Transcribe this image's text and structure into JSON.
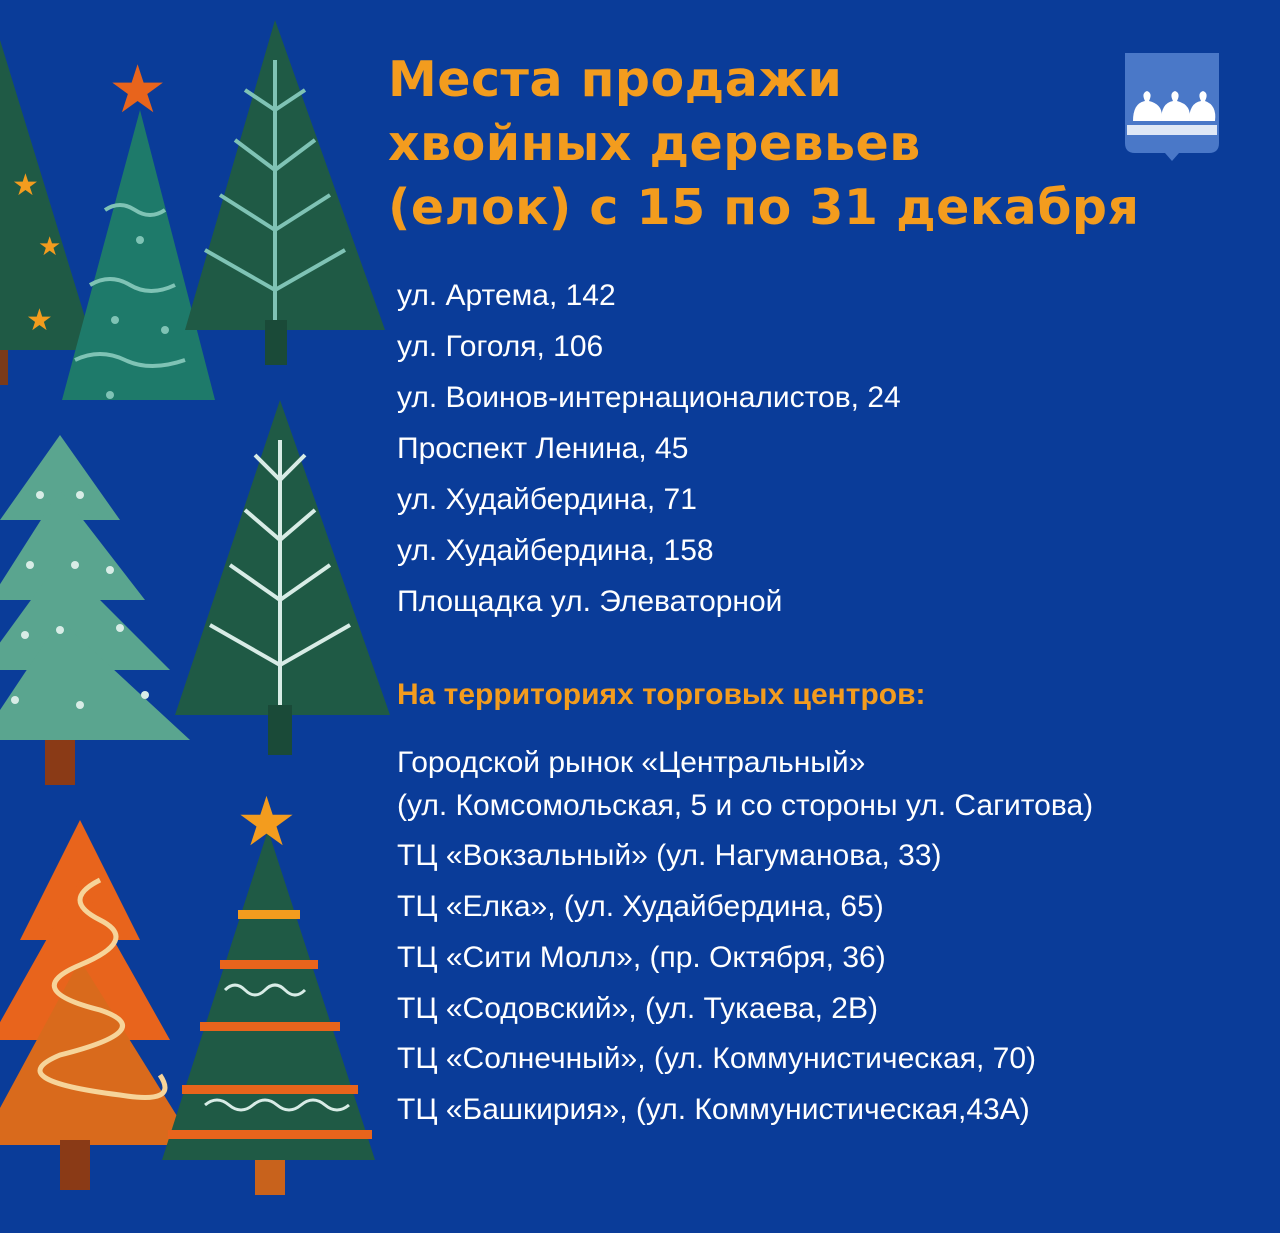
{
  "title_lines": [
    "Места продажи",
    "хвойных деревьев",
    "(елок) с 15 по 31 декабря"
  ],
  "crest_icon": "city-coat-of-arms-swans",
  "addresses": [
    "ул. Артема, 142",
    "ул. Гоголя, 106",
    "ул. Воинов-интернационалистов, 24",
    "Проспект Ленина, 45",
    "ул. Худайбердина, 71",
    "ул. Худайбердина, 158",
    "Площадка ул. Элеваторной"
  ],
  "malls_heading": "На территориях торговых центров:",
  "malls": [
    "Городской рынок «Центральный»",
    "(ул. Комсомольская, 5 и  со стороны ул. Сагитова)",
    "ТЦ «Вокзальный» (ул. Нагуманова, 33)",
    "ТЦ «Елка», (ул. Худайбердина, 65)",
    "ТЦ «Сити Молл», (пр. Октября, 36)",
    "ТЦ «Содовский», (ул. Тукаева, 2В)",
    "ТЦ «Солнечный», (ул. Коммунистическая, 70)",
    "ТЦ «Башкирия», (ул. Коммунистическая,43А)"
  ],
  "colors": {
    "background": "#0a3c99",
    "accent": "#f39c1e",
    "text": "#ffffff"
  }
}
